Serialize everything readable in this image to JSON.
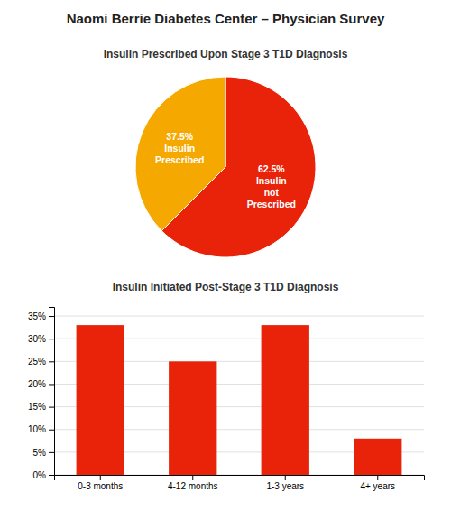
{
  "chart_data": [
    {
      "type": "pie",
      "title": "Naomi Berrie Diabetes Center – Physician Survey",
      "subtitle": "Insulin Prescribed Upon Stage 3 T1D Diagnosis",
      "categories": [
        "Insulin\nnot\nPrescribed",
        "Insulin\nPrescribed"
      ],
      "values": [
        62.5,
        37.5
      ],
      "value_labels": [
        "62.5%",
        "37.5%"
      ],
      "data_labels": true,
      "colors": [
        "#e8230a",
        "#f5a800"
      ]
    },
    {
      "type": "bar",
      "title": "Insulin Initiated Post-Stage 3 T1D Diagnosis",
      "categories": [
        "0-3 months",
        "4-12 months",
        "1-3 years",
        "4+ years"
      ],
      "values": [
        33,
        25,
        33,
        8
      ],
      "color": "#e8230a",
      "ylim": [
        0,
        37
      ],
      "yticks": [
        {
          "value": 0,
          "label": "0%"
        },
        {
          "value": 5,
          "label": "5%"
        },
        {
          "value": 10,
          "label": "10%"
        },
        {
          "value": 15,
          "label": "15%"
        },
        {
          "value": 20,
          "label": "20%"
        },
        {
          "value": 25,
          "label": "25%"
        },
        {
          "value": 30,
          "label": "30%"
        },
        {
          "value": 35,
          "label": "35%"
        }
      ],
      "grid": true
    }
  ]
}
